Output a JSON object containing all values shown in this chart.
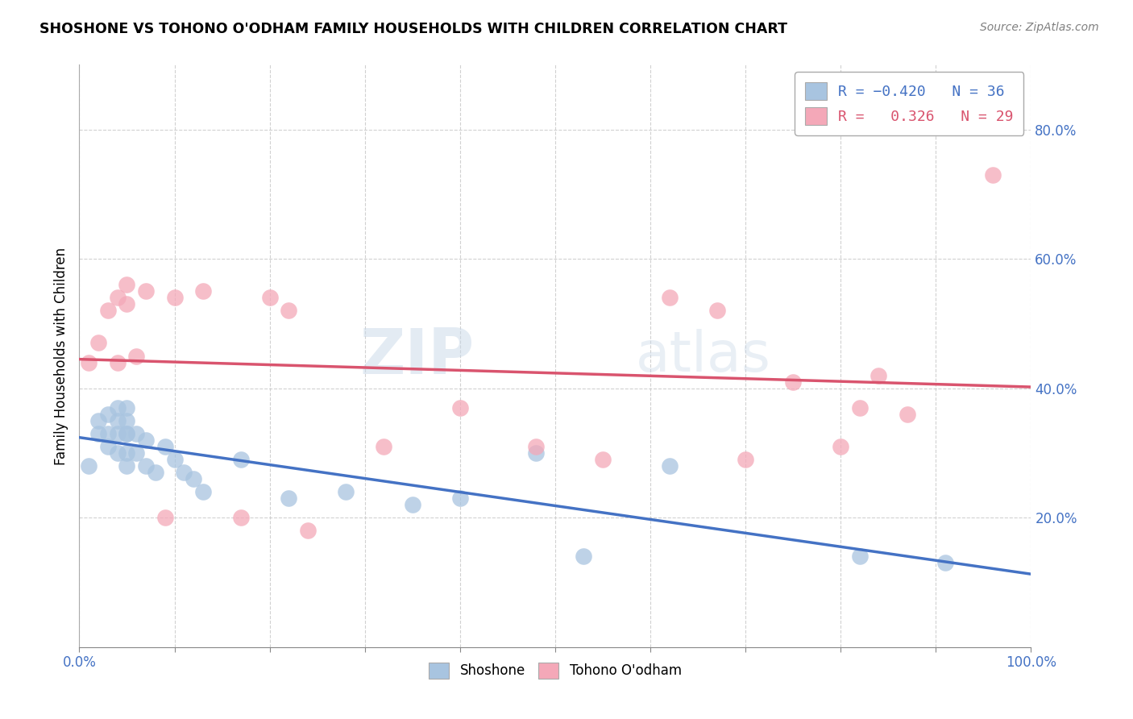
{
  "title": "SHOSHONE VS TOHONO O'ODHAM FAMILY HOUSEHOLDS WITH CHILDREN CORRELATION CHART",
  "source": "Source: ZipAtlas.com",
  "ylabel": "Family Households with Children",
  "xlabel": "",
  "xlim": [
    0.0,
    1.0
  ],
  "ylim": [
    0.0,
    0.9
  ],
  "yticks": [
    0.2,
    0.4,
    0.6,
    0.8
  ],
  "background_color": "#ffffff",
  "watermark_text": "ZIP",
  "watermark_text2": "atlas",
  "shoshone_color": "#a8c4e0",
  "tohono_color": "#f4a8b8",
  "shoshone_line_color": "#4472c4",
  "tohono_line_color": "#d9546e",
  "shoshone_x": [
    0.01,
    0.02,
    0.02,
    0.03,
    0.03,
    0.03,
    0.04,
    0.04,
    0.04,
    0.04,
    0.05,
    0.05,
    0.05,
    0.05,
    0.05,
    0.05,
    0.06,
    0.06,
    0.07,
    0.07,
    0.08,
    0.09,
    0.1,
    0.11,
    0.12,
    0.13,
    0.17,
    0.22,
    0.28,
    0.35,
    0.4,
    0.48,
    0.53,
    0.62,
    0.82,
    0.91
  ],
  "shoshone_y": [
    0.28,
    0.33,
    0.35,
    0.31,
    0.33,
    0.36,
    0.3,
    0.33,
    0.35,
    0.37,
    0.28,
    0.3,
    0.33,
    0.35,
    0.37,
    0.33,
    0.3,
    0.33,
    0.28,
    0.32,
    0.27,
    0.31,
    0.29,
    0.27,
    0.26,
    0.24,
    0.29,
    0.23,
    0.24,
    0.22,
    0.23,
    0.3,
    0.14,
    0.28,
    0.14,
    0.13
  ],
  "tohono_x": [
    0.01,
    0.02,
    0.03,
    0.04,
    0.04,
    0.05,
    0.05,
    0.06,
    0.07,
    0.09,
    0.1,
    0.13,
    0.17,
    0.2,
    0.22,
    0.24,
    0.32,
    0.4,
    0.48,
    0.55,
    0.62,
    0.67,
    0.7,
    0.75,
    0.8,
    0.82,
    0.84,
    0.87,
    0.96
  ],
  "tohono_y": [
    0.44,
    0.47,
    0.52,
    0.54,
    0.44,
    0.53,
    0.56,
    0.45,
    0.55,
    0.2,
    0.54,
    0.55,
    0.2,
    0.54,
    0.52,
    0.18,
    0.31,
    0.37,
    0.31,
    0.29,
    0.54,
    0.52,
    0.29,
    0.41,
    0.31,
    0.37,
    0.42,
    0.36,
    0.73
  ]
}
